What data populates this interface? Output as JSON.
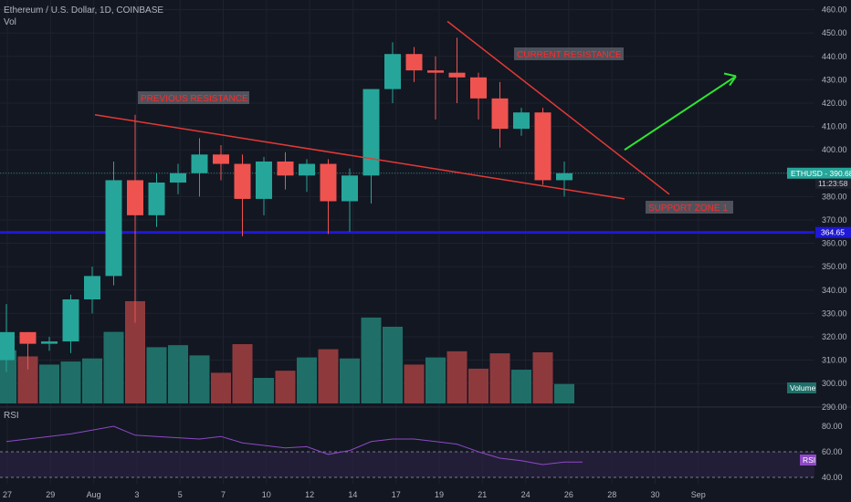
{
  "header": {
    "title": "Ethereum / U.S. Dollar, 1D, COINBASE",
    "volume_label": "Vol",
    "rsi_label": "RSI"
  },
  "colors": {
    "background": "#131722",
    "up": "#26a69a",
    "down": "#ef5350",
    "up_volume": "#1f6f68",
    "down_volume": "#8e3a3d",
    "annotation_red": "#e53935",
    "annotation_green": "#2ee632",
    "support_line": "#1f18d6",
    "rsi_line": "#8e49c6",
    "rsi_band": "#2a2140",
    "grid": "#1e222d",
    "axis_text": "#b2b5be"
  },
  "chart_data": {
    "type": "candlestick",
    "title": "Ethereum / U.S. Dollar, 1D, COINBASE",
    "x_tick_labels": [
      "27",
      "29",
      "Aug",
      "3",
      "5",
      "7",
      "10",
      "12",
      "14",
      "17",
      "19",
      "21",
      "24",
      "26",
      "28",
      "30",
      "Sep"
    ],
    "y_tick_labels": [
      "460.00",
      "450.00",
      "440.00",
      "430.00",
      "420.00",
      "410.00",
      "400.00",
      "380.00",
      "370.00",
      "360.00",
      "350.00",
      "340.00",
      "330.00",
      "320.00",
      "310.00",
      "300.00",
      "290.00"
    ],
    "price_range": [
      286,
      461
    ],
    "candles": [
      {
        "o": 310,
        "h": 334,
        "l": 305,
        "c": 322
      },
      {
        "o": 322,
        "h": 322,
        "l": 306,
        "c": 317
      },
      {
        "o": 317,
        "h": 320,
        "l": 314,
        "c": 318
      },
      {
        "o": 318,
        "h": 338,
        "l": 313,
        "c": 336
      },
      {
        "o": 336,
        "h": 350,
        "l": 330,
        "c": 346
      },
      {
        "o": 346,
        "h": 395,
        "l": 342,
        "c": 387
      },
      {
        "o": 387,
        "h": 415,
        "l": 326,
        "c": 372
      },
      {
        "o": 372,
        "h": 390,
        "l": 367,
        "c": 386
      },
      {
        "o": 386,
        "h": 394,
        "l": 381,
        "c": 390
      },
      {
        "o": 390,
        "h": 405,
        "l": 380,
        "c": 398
      },
      {
        "o": 398,
        "h": 402,
        "l": 387,
        "c": 394
      },
      {
        "o": 394,
        "h": 398,
        "l": 363,
        "c": 379
      },
      {
        "o": 379,
        "h": 397,
        "l": 372,
        "c": 395
      },
      {
        "o": 395,
        "h": 399,
        "l": 383,
        "c": 389
      },
      {
        "o": 389,
        "h": 396,
        "l": 382,
        "c": 394
      },
      {
        "o": 394,
        "h": 396,
        "l": 364,
        "c": 378
      },
      {
        "o": 378,
        "h": 392,
        "l": 365,
        "c": 389
      },
      {
        "o": 389,
        "h": 425,
        "l": 377,
        "c": 426
      },
      {
        "o": 426,
        "h": 446,
        "l": 420,
        "c": 441
      },
      {
        "o": 441,
        "h": 444,
        "l": 429,
        "c": 434
      },
      {
        "o": 434,
        "h": 440,
        "l": 413,
        "c": 433
      },
      {
        "o": 433,
        "h": 448,
        "l": 420,
        "c": 431
      },
      {
        "o": 431,
        "h": 433,
        "l": 413,
        "c": 422
      },
      {
        "o": 422,
        "h": 429,
        "l": 401,
        "c": 409
      },
      {
        "o": 409,
        "h": 418,
        "l": 406,
        "c": 416
      },
      {
        "o": 416,
        "h": 418,
        "l": 385,
        "c": 387
      },
      {
        "o": 387,
        "h": 395,
        "l": 380,
        "c": 390
      }
    ],
    "volume": [
      {
        "v": 0.52,
        "up": true
      },
      {
        "v": 0.46,
        "up": false
      },
      {
        "v": 0.38,
        "up": true
      },
      {
        "v": 0.41,
        "up": true
      },
      {
        "v": 0.44,
        "up": true
      },
      {
        "v": 0.7,
        "up": true
      },
      {
        "v": 1.0,
        "up": false
      },
      {
        "v": 0.55,
        "up": true
      },
      {
        "v": 0.57,
        "up": true
      },
      {
        "v": 0.47,
        "up": true
      },
      {
        "v": 0.3,
        "up": false
      },
      {
        "v": 0.58,
        "up": false
      },
      {
        "v": 0.25,
        "up": true
      },
      {
        "v": 0.32,
        "up": false
      },
      {
        "v": 0.45,
        "up": true
      },
      {
        "v": 0.53,
        "up": false
      },
      {
        "v": 0.44,
        "up": true
      },
      {
        "v": 0.84,
        "up": true
      },
      {
        "v": 0.75,
        "up": true
      },
      {
        "v": 0.38,
        "up": false
      },
      {
        "v": 0.45,
        "up": true
      },
      {
        "v": 0.51,
        "up": false
      },
      {
        "v": 0.34,
        "up": false
      },
      {
        "v": 0.49,
        "up": false
      },
      {
        "v": 0.33,
        "up": true
      },
      {
        "v": 0.5,
        "up": false
      },
      {
        "v": 0.19,
        "up": true
      }
    ],
    "rsi": [
      68,
      70,
      72,
      74,
      77,
      80,
      73,
      72,
      71,
      70,
      72,
      67,
      65,
      63,
      64,
      58,
      61,
      68,
      70,
      70,
      68,
      66,
      60,
      55,
      53,
      50,
      52
    ],
    "rsi_range": [
      35,
      95
    ],
    "rsi_ticks": [
      "80.00",
      "60.00",
      "40.00"
    ],
    "rsi_band": [
      40,
      60
    ],
    "price_labels": {
      "last": "ETHUSD - 390.68",
      "countdown": "11:23:58",
      "support_level": "364.65"
    },
    "support_level": 364.65,
    "volume_tag": "Volume",
    "rsi_tag": "RSI",
    "annotations": {
      "previous_resistance": "PREVIOUS RESISTANCE",
      "current_resistance": "CURRENT RESISTANCE",
      "support_zone": "SUPPORT ZONE 1"
    },
    "grid": true
  }
}
